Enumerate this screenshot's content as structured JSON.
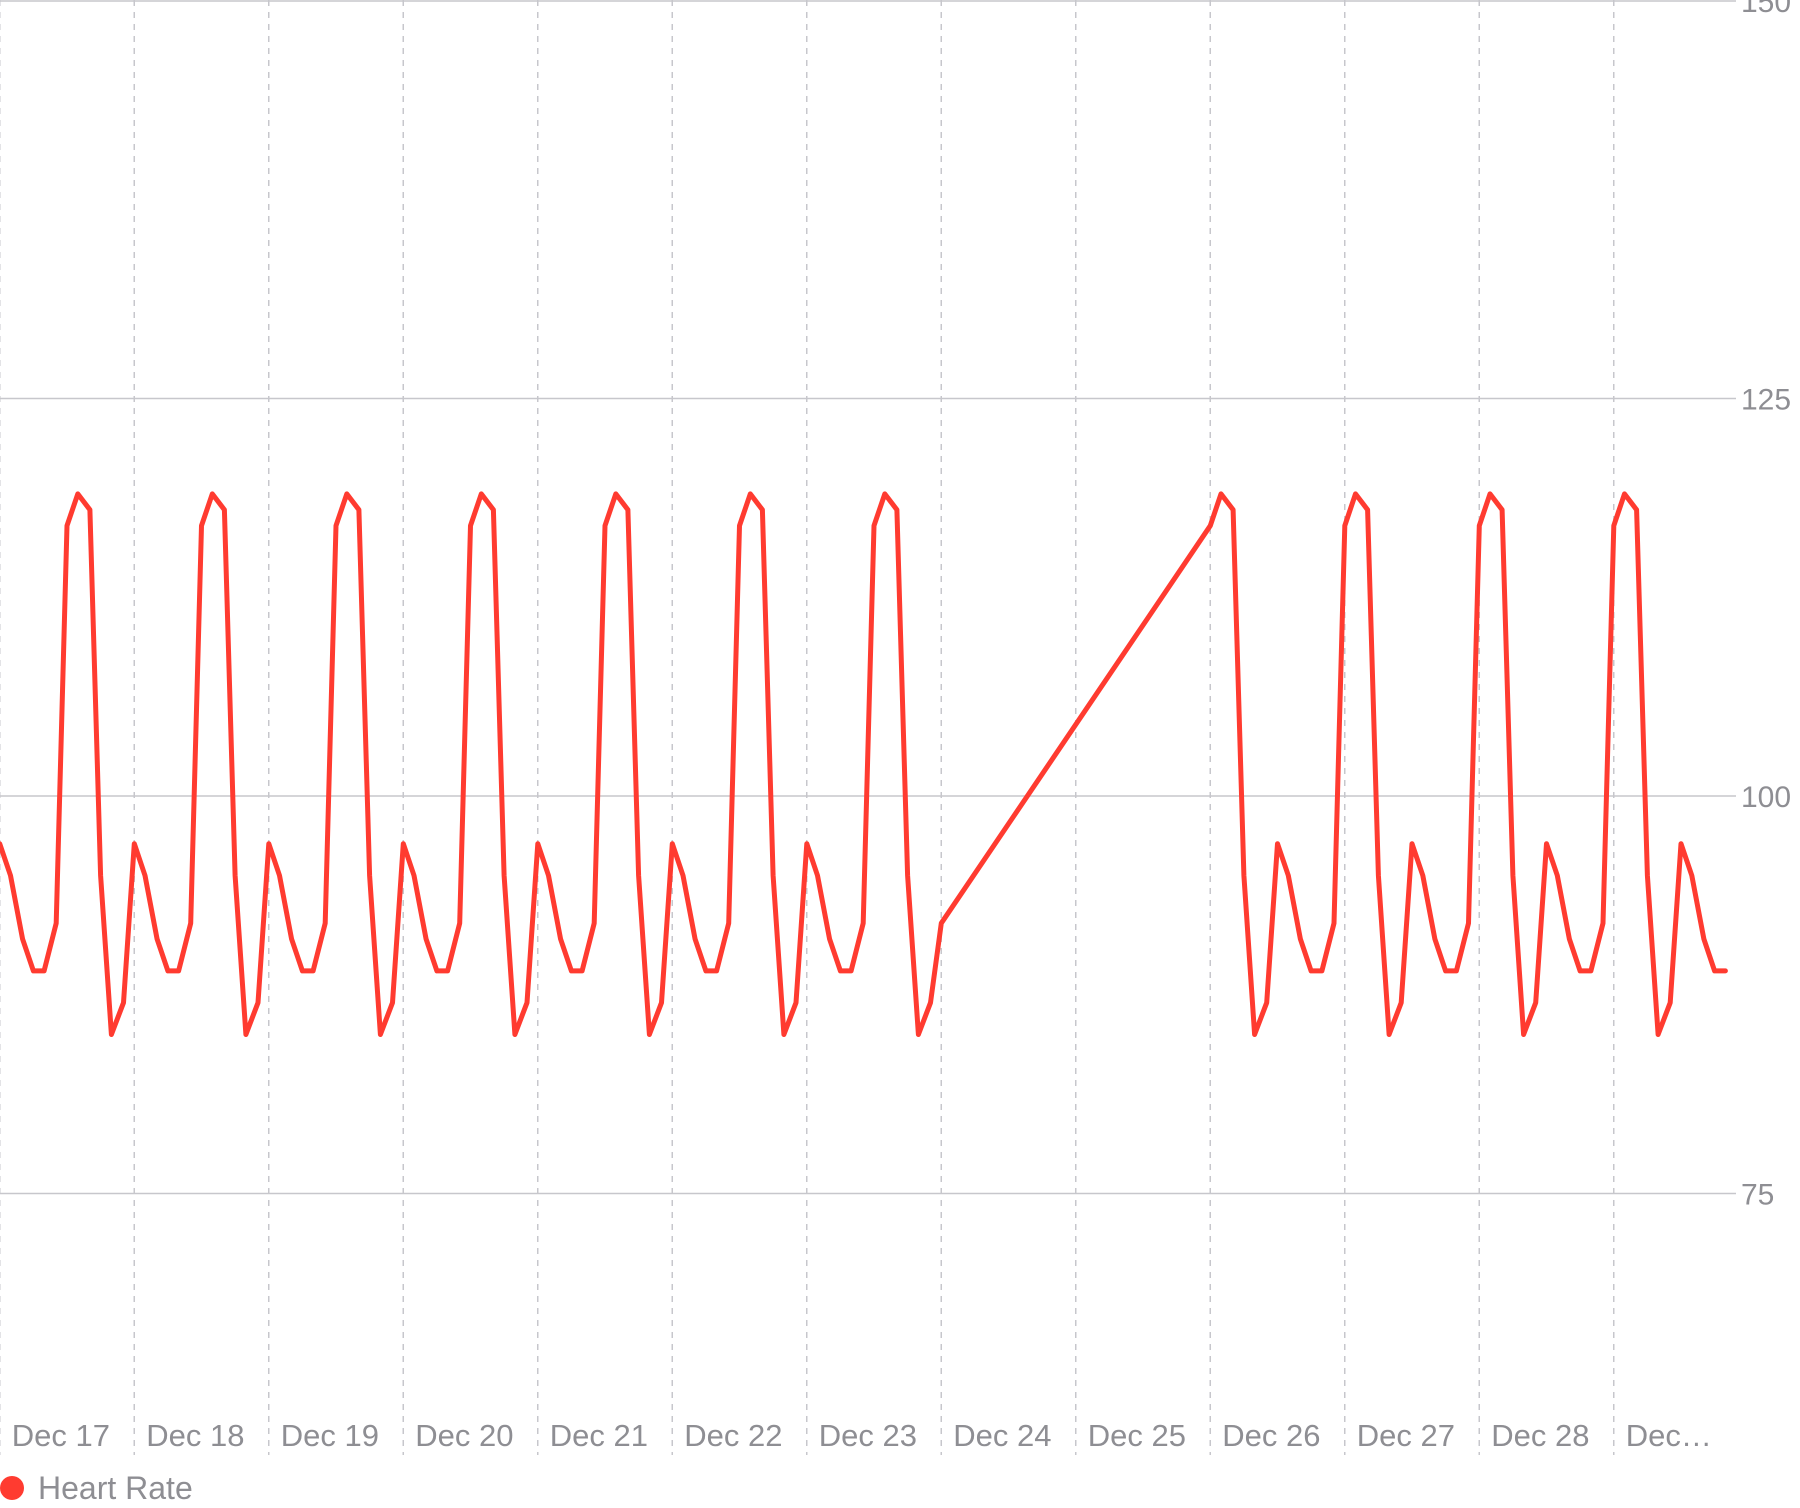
{
  "chart_data": {
    "type": "line",
    "x_tick_labels": [
      "Dec 17",
      "Dec 18",
      "Dec 19",
      "Dec 20",
      "Dec 21",
      "Dec 22",
      "Dec 23",
      "Dec 24",
      "Dec 25",
      "Dec 26",
      "Dec 27",
      "Dec 28",
      "Dec…"
    ],
    "y_ticks": [
      75,
      100,
      125,
      150
    ],
    "ylim": [
      60,
      150
    ],
    "xlim": [
      -0.5,
      12.3
    ],
    "y_axis_position": "right",
    "grid": {
      "horizontal": "solid",
      "vertical": "dashed"
    },
    "legend_position": "bottom-left",
    "series": [
      {
        "name": "Heart Rate",
        "color": "#ff3b30",
        "x": [
          -0.5,
          -0.42,
          -0.33,
          -0.25,
          -0.17,
          -0.08,
          0,
          0.08,
          0.17,
          0.25,
          0.33,
          0.42,
          0.5,
          0.58,
          0.67,
          0.75,
          0.83,
          0.92,
          1,
          1.08,
          1.17,
          1.25,
          1.33,
          1.42,
          1.5,
          1.58,
          1.67,
          1.75,
          1.83,
          1.92,
          2,
          2.08,
          2.17,
          2.25,
          2.33,
          2.42,
          2.5,
          2.58,
          2.67,
          2.75,
          2.83,
          2.92,
          3,
          3.08,
          3.17,
          3.25,
          3.33,
          3.42,
          3.5,
          3.58,
          3.67,
          3.75,
          3.83,
          3.92,
          4,
          4.08,
          4.17,
          4.25,
          4.33,
          4.42,
          4.5,
          4.58,
          4.67,
          4.75,
          4.83,
          4.92,
          5,
          5.08,
          5.17,
          5.25,
          5.33,
          5.42,
          5.5,
          5.58,
          5.67,
          5.75,
          5.83,
          5.92,
          6,
          6.08,
          6.17,
          6.25,
          6.33,
          6.42,
          6.5,
          8.5,
          8.58,
          8.67,
          8.75,
          8.83,
          8.92,
          9,
          9.08,
          9.17,
          9.25,
          9.33,
          9.42,
          9.5,
          9.58,
          9.67,
          9.75,
          9.83,
          9.92,
          10,
          10.08,
          10.17,
          10.25,
          10.33,
          10.42,
          10.5,
          10.58,
          10.67,
          10.75,
          10.83,
          10.92,
          11,
          11.08,
          11.17,
          11.25,
          11.33,
          11.42,
          11.5,
          11.58,
          11.67,
          11.75,
          11.83,
          11.92,
          12,
          12.08,
          12.17,
          12.25,
          12.33
        ],
        "values": [
          97,
          95,
          91,
          89,
          89,
          92,
          117,
          119,
          118,
          95,
          85,
          87,
          97,
          95,
          91,
          89,
          89,
          92,
          117,
          119,
          118,
          95,
          85,
          87,
          97,
          95,
          91,
          89,
          89,
          92,
          117,
          119,
          118,
          95,
          85,
          87,
          97,
          95,
          91,
          89,
          89,
          92,
          117,
          119,
          118,
          95,
          85,
          87,
          97,
          95,
          91,
          89,
          89,
          92,
          117,
          119,
          118,
          95,
          85,
          87,
          97,
          95,
          91,
          89,
          89,
          92,
          117,
          119,
          118,
          95,
          85,
          87,
          97,
          95,
          91,
          89,
          89,
          92,
          117,
          119,
          118,
          95,
          85,
          87,
          92,
          117,
          119,
          118,
          95,
          85,
          87,
          97,
          95,
          91,
          89,
          89,
          92,
          117,
          119,
          118,
          95,
          85,
          87,
          97,
          95,
          91,
          89,
          89,
          92,
          117,
          119,
          118,
          95,
          85,
          87,
          97,
          95,
          91,
          89,
          89,
          92,
          117,
          119,
          118,
          95,
          85,
          87,
          97,
          95,
          91,
          89,
          89
        ]
      }
    ]
  }
}
